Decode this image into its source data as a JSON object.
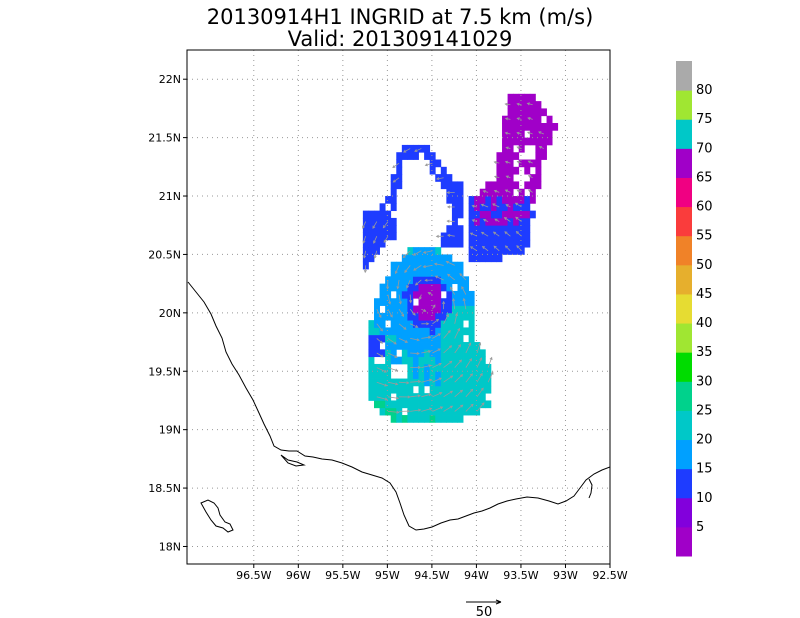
{
  "title_line1": "20130914H1 INGRID at 7.5 km (m/s)",
  "title_line2": "Valid: 201309141029",
  "chart_data": {
    "type": "heatmap",
    "xlabel": "",
    "ylabel": "",
    "xlim": [
      -97.25,
      -92.5
    ],
    "ylim": [
      17.85,
      22.25
    ],
    "x_ticks": [
      {
        "v": -96.5,
        "label": "96.5W"
      },
      {
        "v": -96.0,
        "label": "96W"
      },
      {
        "v": -95.5,
        "label": "95.5W"
      },
      {
        "v": -95.0,
        "label": "95W"
      },
      {
        "v": -94.5,
        "label": "94.5W"
      },
      {
        "v": -94.0,
        "label": "94W"
      },
      {
        "v": -93.5,
        "label": "93.5W"
      },
      {
        "v": -93.0,
        "label": "93W"
      },
      {
        "v": -92.5,
        "label": "92.5W"
      }
    ],
    "y_ticks": [
      {
        "v": 18.0,
        "label": "18N"
      },
      {
        "v": 18.5,
        "label": "18.5N"
      },
      {
        "v": 19.0,
        "label": "19N"
      },
      {
        "v": 19.5,
        "label": "19.5N"
      },
      {
        "v": 20.0,
        "label": "20N"
      },
      {
        "v": 20.5,
        "label": "20.5N"
      },
      {
        "v": 21.0,
        "label": "21N"
      },
      {
        "v": 21.5,
        "label": "21.5N"
      },
      {
        "v": 22.0,
        "label": "22N"
      }
    ],
    "grid": true,
    "colorbar": {
      "labels": [
        "5",
        "10",
        "15",
        "20",
        "25",
        "30",
        "35",
        "40",
        "45",
        "50",
        "55",
        "60",
        "65",
        "70",
        "75",
        "80"
      ],
      "colors": [
        "#a000c8",
        "#8200dc",
        "#1e3cff",
        "#00a0ff",
        "#00c8c8",
        "#00d28c",
        "#00dc00",
        "#a0e632",
        "#e6dc32",
        "#e6af2d",
        "#f08228",
        "#fa3c3c",
        "#f00082",
        "#a000c8",
        "#00c8c8",
        "#a0e632",
        "#aaaaaa"
      ]
    },
    "wind_regions": [
      {
        "name": "core-wind",
        "speed_ms": 15,
        "lon": [
          -95.15,
          -93.8
        ],
        "lat": [
          19.15,
          20.6
        ]
      },
      {
        "name": "southeast-wind",
        "speed_ms": 22,
        "lon": [
          -94.4,
          -93.95
        ],
        "lat": [
          19.15,
          20.05
        ]
      },
      {
        "name": "eye-center",
        "speed_ms": 5,
        "lon": [
          -94.7,
          -94.35
        ],
        "lat": [
          19.95,
          20.3
        ]
      },
      {
        "name": "north-arc",
        "speed_ms": 10,
        "lon": [
          -95.3,
          -94.15
        ],
        "lat": [
          20.45,
          21.5
        ]
      },
      {
        "name": "northeast-band",
        "speed_ms": 5,
        "lon": [
          -93.75,
          -93.0
        ],
        "lat": [
          20.5,
          21.9
        ]
      }
    ],
    "vector_reference": {
      "label": "50",
      "value_ms": 50
    }
  }
}
